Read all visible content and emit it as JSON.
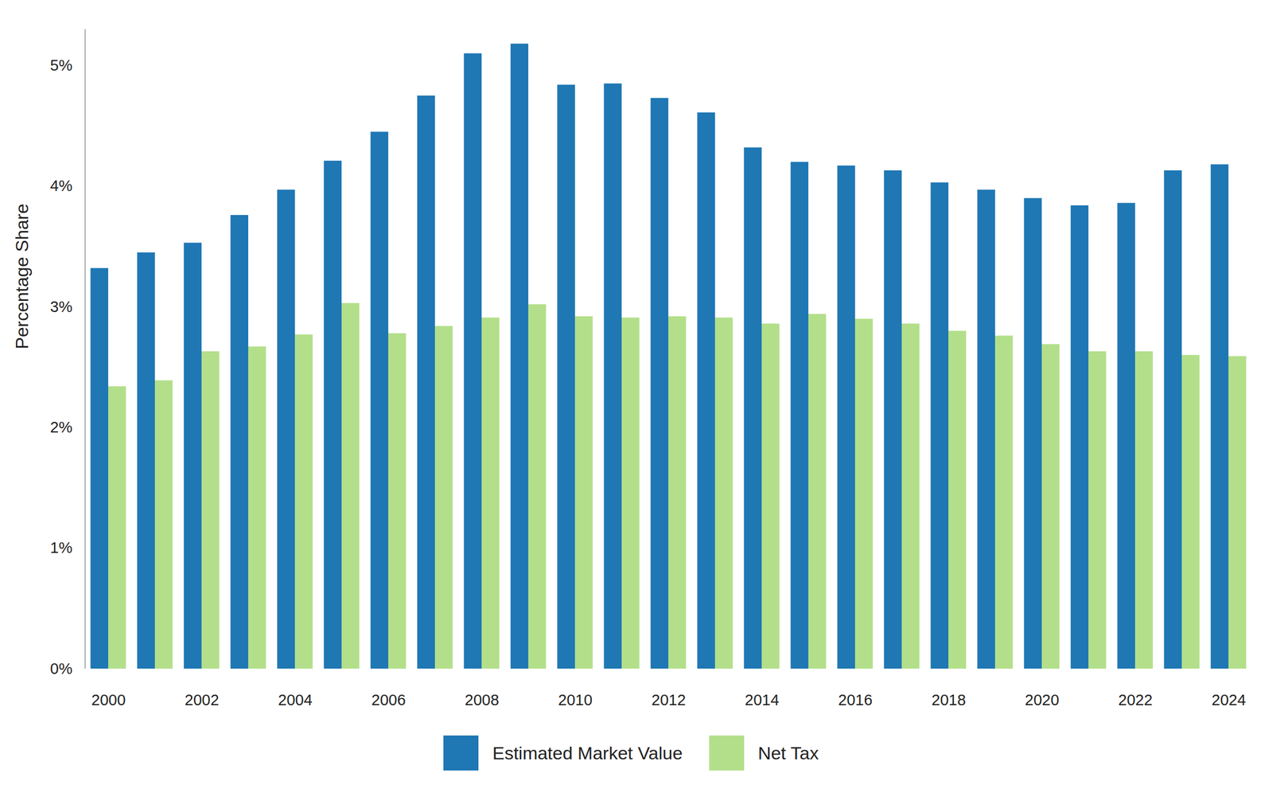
{
  "chart_data": {
    "type": "bar",
    "y_label": "Percentage Share",
    "categories": [
      "2000",
      null,
      "2002",
      null,
      "2004",
      null,
      "2006",
      null,
      "2008",
      null,
      "2010",
      null,
      "2012",
      null,
      "2014",
      null,
      "2016",
      null,
      "2018",
      null,
      "2020",
      null,
      "2022",
      null,
      "2024"
    ],
    "series": [
      {
        "name": "Estimated Market Value",
        "color": "#1f77b4",
        "values": [
          3.32,
          3.45,
          3.53,
          3.76,
          3.97,
          4.21,
          4.45,
          4.75,
          5.1,
          5.18,
          4.84,
          4.85,
          4.73,
          4.61,
          4.32,
          4.2,
          4.17,
          4.13,
          4.03,
          3.97,
          3.9,
          3.84,
          3.86,
          4.13,
          4.18
        ]
      },
      {
        "name": "Net Tax",
        "color": "#b3df8a",
        "values": [
          2.34,
          2.39,
          2.63,
          2.67,
          2.77,
          3.03,
          2.78,
          2.84,
          2.91,
          3.02,
          2.92,
          2.91,
          2.92,
          2.91,
          2.86,
          2.94,
          2.9,
          2.86,
          2.8,
          2.76,
          2.69,
          2.63,
          2.63,
          2.6,
          2.59
        ]
      }
    ],
    "ylim": [
      0,
      5.3
    ],
    "yticks": [
      {
        "value": 0,
        "label": "0%"
      },
      {
        "value": 1,
        "label": "1%"
      },
      {
        "value": 2,
        "label": "2%"
      },
      {
        "value": 3,
        "label": "3%"
      },
      {
        "value": 4,
        "label": "4%"
      },
      {
        "value": 5,
        "label": "5%"
      }
    ],
    "grid": false,
    "legend": "bottom"
  }
}
